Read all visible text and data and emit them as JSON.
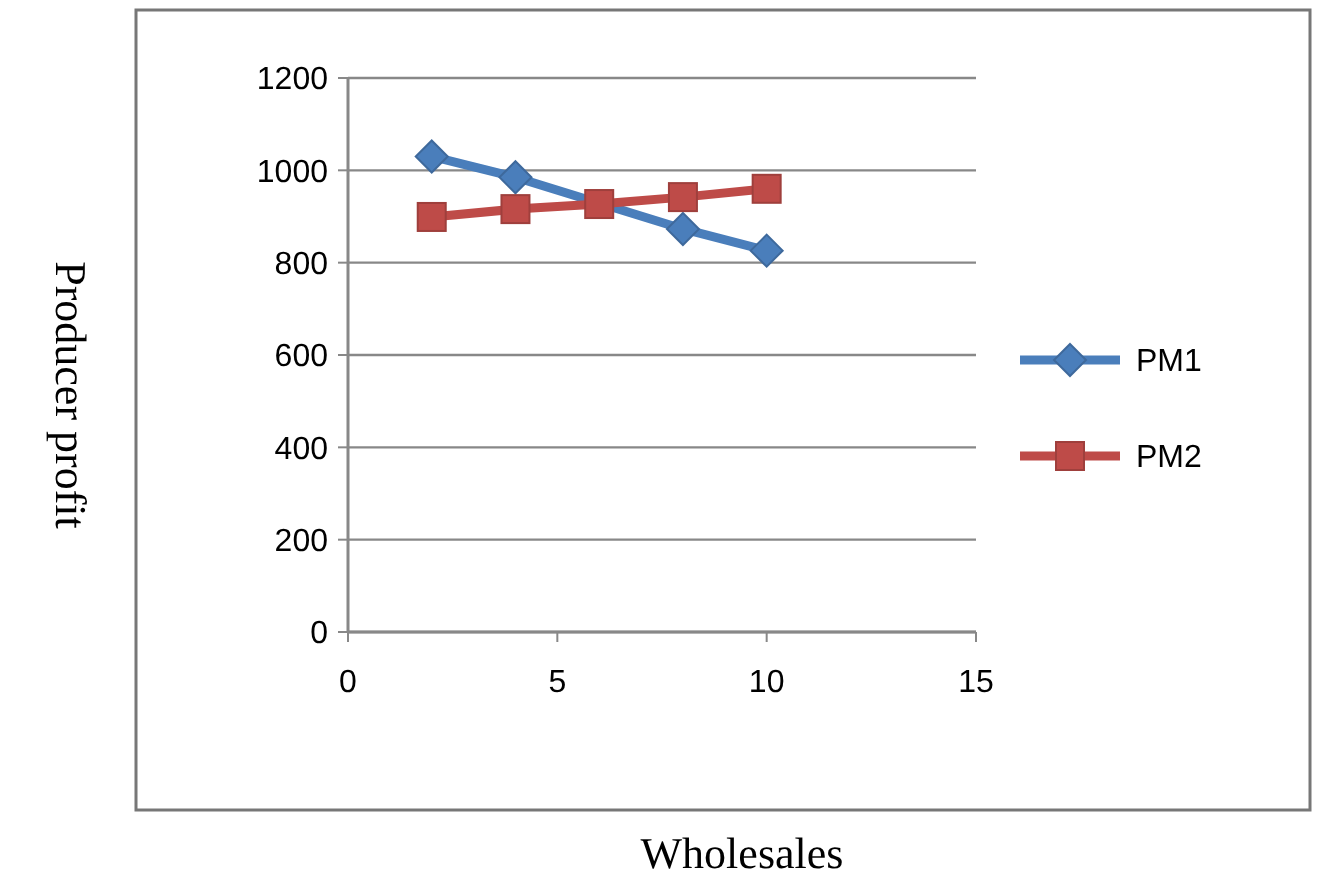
{
  "chart_data": {
    "type": "line",
    "xlabel": "Wholesales",
    "ylabel": "Producer profit",
    "x": [
      2,
      4,
      6,
      8,
      10
    ],
    "xlim": [
      0,
      15
    ],
    "xticks": [
      0,
      5,
      10,
      15
    ],
    "ylim": [
      0,
      1200
    ],
    "yticks": [
      0,
      200,
      400,
      600,
      800,
      1000,
      1200
    ],
    "grid": "y",
    "legend": "right",
    "series": [
      {
        "name": "PM1",
        "color": "#4a7ebb",
        "marker": "diamond",
        "values": [
          1030,
          985,
          null,
          873,
          826
        ]
      },
      {
        "name": "PM2",
        "color": "#be4b48",
        "marker": "square",
        "values": [
          899,
          916,
          927,
          942,
          960
        ]
      }
    ]
  }
}
